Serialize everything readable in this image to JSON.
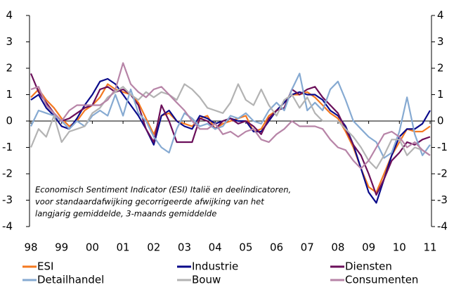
{
  "chart_data": {
    "type": "line",
    "annotation": [
      "Economisch Sentiment Indicator (ESI) Italië en deelindicatoren,",
      "voor standaardafwijking gecorrigeerde afwijking van het",
      "langjarig gemiddelde, 3-maands gemiddelde"
    ],
    "x": [
      1998,
      1998.25,
      1998.5,
      1998.75,
      1999,
      1999.25,
      1999.5,
      1999.75,
      2000,
      2000.25,
      2000.5,
      2000.75,
      2001,
      2001.25,
      2001.5,
      2001.75,
      2002,
      2002.25,
      2002.5,
      2002.75,
      2003,
      2003.25,
      2003.5,
      2003.75,
      2004,
      2004.25,
      2004.5,
      2004.75,
      2005,
      2005.25,
      2005.5,
      2005.75,
      2006,
      2006.25,
      2006.5,
      2006.75,
      2007,
      2007.25,
      2007.5,
      2007.75,
      2008,
      2008.25,
      2008.5,
      2008.75,
      2009,
      2009.25,
      2009.5,
      2009.75,
      2010,
      2010.25,
      2010.5,
      2010.75,
      2011
    ],
    "series": [
      {
        "name": "ESI",
        "color": "#f47920",
        "values": [
          0.9,
          1.2,
          0.8,
          0.5,
          0.1,
          -0.2,
          0.0,
          0.4,
          0.6,
          0.9,
          1.4,
          1.2,
          1.1,
          1.0,
          0.7,
          0.1,
          -0.5,
          0.2,
          0.3,
          0.0,
          -0.1,
          -0.2,
          0.1,
          0.2,
          -0.3,
          -0.1,
          0.0,
          0.1,
          0.2,
          -0.4,
          -0.3,
          0.2,
          0.4,
          0.7,
          1.0,
          1.0,
          1.1,
          0.9,
          0.6,
          0.3,
          0.1,
          -0.4,
          -1.0,
          -1.8,
          -2.5,
          -2.7,
          -2.0,
          -1.3,
          -0.8,
          -0.3,
          -0.4,
          -0.4,
          -0.2
        ]
      },
      {
        "name": "Industrie",
        "color": "#0a0a8a",
        "values": [
          0.8,
          1.0,
          0.5,
          0.2,
          -0.2,
          -0.3,
          0.1,
          0.6,
          1.0,
          1.5,
          1.6,
          1.4,
          1.0,
          0.6,
          0.2,
          -0.3,
          -0.9,
          0.2,
          0.4,
          0.0,
          -0.2,
          -0.3,
          0.2,
          0.1,
          -0.1,
          0.0,
          0.1,
          0.0,
          0.0,
          -0.4,
          -0.4,
          0.0,
          0.4,
          0.7,
          1.0,
          1.1,
          1.0,
          1.0,
          0.8,
          0.4,
          0.2,
          -0.2,
          -0.9,
          -1.8,
          -2.7,
          -3.1,
          -2.2,
          -1.3,
          -0.6,
          -0.3,
          -0.3,
          -0.1,
          0.4
        ]
      },
      {
        "name": "Diensten",
        "color": "#6b0f5a",
        "values": [
          1.8,
          1.1,
          0.7,
          0.3,
          0.0,
          0.1,
          0.3,
          0.5,
          0.6,
          1.2,
          1.3,
          1.1,
          1.2,
          1.0,
          0.6,
          -0.3,
          -0.8,
          0.6,
          0.0,
          -0.8,
          -0.8,
          -0.8,
          0.1,
          0.0,
          -0.3,
          0.0,
          0.1,
          -0.1,
          0.0,
          -0.2,
          -0.5,
          0.1,
          0.4,
          0.5,
          1.2,
          1.0,
          1.2,
          1.3,
          0.9,
          0.6,
          0.3,
          -0.3,
          -0.9,
          -1.3,
          -2.0,
          -2.8,
          -2.2,
          -1.5,
          -1.2,
          -0.8,
          -0.9,
          -0.7,
          -0.6
        ]
      },
      {
        "name": "Detailhandel",
        "color": "#86aad2",
        "values": [
          -0.2,
          0.4,
          0.3,
          0.2,
          0.0,
          -0.3,
          0.0,
          -0.2,
          0.2,
          0.4,
          0.2,
          1.0,
          0.2,
          1.2,
          0.3,
          0.0,
          -0.6,
          -1.0,
          -1.2,
          -0.3,
          0.3,
          0.1,
          -0.2,
          -0.1,
          -0.3,
          -0.2,
          0.2,
          0.1,
          0.3,
          0.0,
          -0.1,
          0.4,
          0.7,
          0.4,
          1.2,
          1.8,
          0.4,
          0.7,
          0.4,
          1.2,
          1.5,
          0.8,
          0.0,
          -0.3,
          -0.6,
          -0.8,
          -1.4,
          -1.2,
          -0.4,
          0.9,
          -0.5,
          -1.3,
          -0.9
        ]
      },
      {
        "name": "Bouw",
        "color": "#b3b3b3",
        "values": [
          -1.0,
          -0.3,
          -0.6,
          0.2,
          -0.8,
          -0.4,
          -0.3,
          -0.2,
          0.3,
          0.5,
          0.9,
          1.1,
          1.3,
          1.0,
          0.8,
          1.1,
          0.9,
          1.1,
          1.0,
          0.8,
          1.4,
          1.2,
          0.9,
          0.5,
          0.4,
          0.3,
          0.7,
          1.4,
          0.8,
          0.6,
          1.2,
          0.6,
          0.2,
          0.8,
          1.0,
          0.5,
          0.9,
          0.3,
          0.0,
          0.0,
          0.0,
          -0.3,
          -0.6,
          -1.0,
          -1.5,
          -1.8,
          -1.3,
          -0.7,
          -0.7,
          -1.3,
          -1.0,
          -1.1,
          -1.3
        ]
      },
      {
        "name": "Consumenten",
        "color": "#b784a7",
        "values": [
          1.2,
          1.3,
          0.6,
          0.3,
          0.0,
          0.4,
          0.6,
          0.6,
          0.6,
          0.6,
          0.8,
          1.2,
          2.2,
          1.4,
          1.1,
          0.9,
          1.2,
          1.3,
          1.0,
          0.7,
          0.4,
          0.0,
          -0.3,
          -0.3,
          -0.1,
          -0.5,
          -0.4,
          -0.6,
          -0.4,
          -0.3,
          -0.7,
          -0.8,
          -0.5,
          -0.3,
          0.0,
          -0.2,
          -0.2,
          -0.2,
          -0.3,
          -0.7,
          -1.0,
          -1.1,
          -1.5,
          -1.8,
          -1.5,
          -1.0,
          -0.5,
          -0.4,
          -0.6,
          -1.0,
          -0.8,
          -1.1,
          -1.3
        ]
      }
    ],
    "xlim": [
      1998,
      2011
    ],
    "xticks": [
      {
        "value": 1998,
        "label": "98"
      },
      {
        "value": 1999,
        "label": "99"
      },
      {
        "value": 2000,
        "label": "00"
      },
      {
        "value": 2001,
        "label": "01"
      },
      {
        "value": 2002,
        "label": "02"
      },
      {
        "value": 2003,
        "label": "03"
      },
      {
        "value": 2004,
        "label": "04"
      },
      {
        "value": 2005,
        "label": "05"
      },
      {
        "value": 2006,
        "label": "06"
      },
      {
        "value": 2007,
        "label": "07"
      },
      {
        "value": 2008,
        "label": "08"
      },
      {
        "value": 2009,
        "label": "09"
      },
      {
        "value": 2010,
        "label": "10"
      },
      {
        "value": 2011,
        "label": "11"
      }
    ],
    "ylim": [
      -4,
      4
    ],
    "yticks": [
      -4,
      -3,
      -2,
      -1,
      0,
      1,
      2,
      3,
      4
    ],
    "y2lim": [
      -4,
      4
    ],
    "y2ticks": [
      -4,
      -3,
      -2,
      -1,
      0,
      1,
      2,
      3,
      4
    ]
  }
}
